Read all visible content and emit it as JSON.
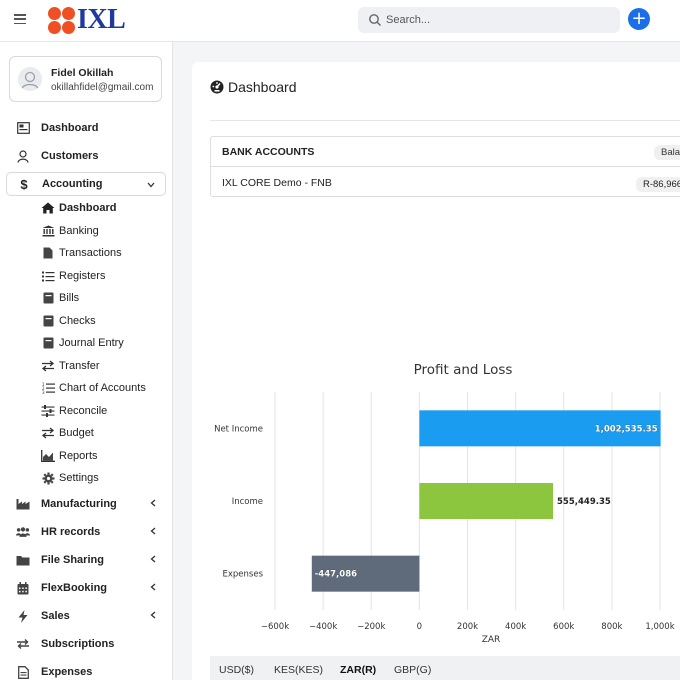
{
  "topbar": {
    "logo_text": "IXL",
    "search_placeholder": "Search...",
    "add_label": "+"
  },
  "user": {
    "name": "Fidel Okillah",
    "email": "okillahfidel@gmail.com"
  },
  "sidebar": {
    "items": [
      {
        "label": "Dashboard",
        "icon": "dashboard-icon"
      },
      {
        "label": "Customers",
        "icon": "user-icon"
      },
      {
        "label": "Accounting",
        "icon": "dollar-icon",
        "expanded": true
      },
      {
        "label": "Manufacturing",
        "icon": "factory-icon"
      },
      {
        "label": "HR records",
        "icon": "users-icon"
      },
      {
        "label": "File Sharing",
        "icon": "folder-icon"
      },
      {
        "label": "FlexBooking",
        "icon": "calendar-icon"
      },
      {
        "label": "Sales",
        "icon": "bolt-icon"
      },
      {
        "label": "Subscriptions",
        "icon": "sync-icon"
      },
      {
        "label": "Expenses",
        "icon": "file-icon"
      }
    ],
    "accounting_sub": [
      {
        "label": "Dashboard",
        "icon": "home-icon"
      },
      {
        "label": "Banking",
        "icon": "bank-icon"
      },
      {
        "label": "Transactions",
        "icon": "document-icon"
      },
      {
        "label": "Registers",
        "icon": "list-icon"
      },
      {
        "label": "Bills",
        "icon": "book-icon"
      },
      {
        "label": "Checks",
        "icon": "book-icon"
      },
      {
        "label": "Journal Entry",
        "icon": "book-icon"
      },
      {
        "label": "Transfer",
        "icon": "transfer-icon"
      },
      {
        "label": "Chart of Accounts",
        "icon": "ordered-list-icon"
      },
      {
        "label": "Reconcile",
        "icon": "sliders-icon"
      },
      {
        "label": "Budget",
        "icon": "transfer-icon"
      },
      {
        "label": "Reports",
        "icon": "area-chart-icon"
      },
      {
        "label": "Settings",
        "icon": "gear-icon"
      }
    ]
  },
  "main": {
    "title": "Dashboard",
    "bank_accounts": {
      "header": "BANK ACCOUNTS",
      "balance_header": "Bala",
      "rows": [
        {
          "name": "IXL CORE Demo - FNB",
          "balance": "R-86,966"
        }
      ]
    },
    "currencies": [
      "USD($)",
      "KES(KES)",
      "ZAR(R)",
      "GBP(G)"
    ],
    "selected_currency": "ZAR(R)"
  },
  "colors": {
    "net_income": "#1a9cf0",
    "income": "#8cc63f",
    "expenses": "#5f6b7a",
    "brand_blue": "#1f3a9e",
    "brand_orange": "#f04e23",
    "accent": "#1a6fe8"
  },
  "chart_data": {
    "type": "bar",
    "orientation": "horizontal",
    "title": "Profit and Loss",
    "xlabel": "ZAR",
    "categories": [
      "Net Income",
      "Income",
      "Expenses"
    ],
    "values": [
      1002535.35,
      555449.35,
      -447086
    ],
    "data_labels": [
      "1,002,535.35",
      "555,449.35",
      "-447,086"
    ],
    "xlim": [
      -600000,
      1000000
    ],
    "xticks": [
      -600000,
      -400000,
      -200000,
      0,
      200000,
      400000,
      600000,
      800000,
      1000000
    ],
    "xtick_labels": [
      "−600k",
      "−400k",
      "−200k",
      "0",
      "200k",
      "400k",
      "600k",
      "800k",
      "1,000k"
    ],
    "grid": true,
    "legend": "none"
  }
}
